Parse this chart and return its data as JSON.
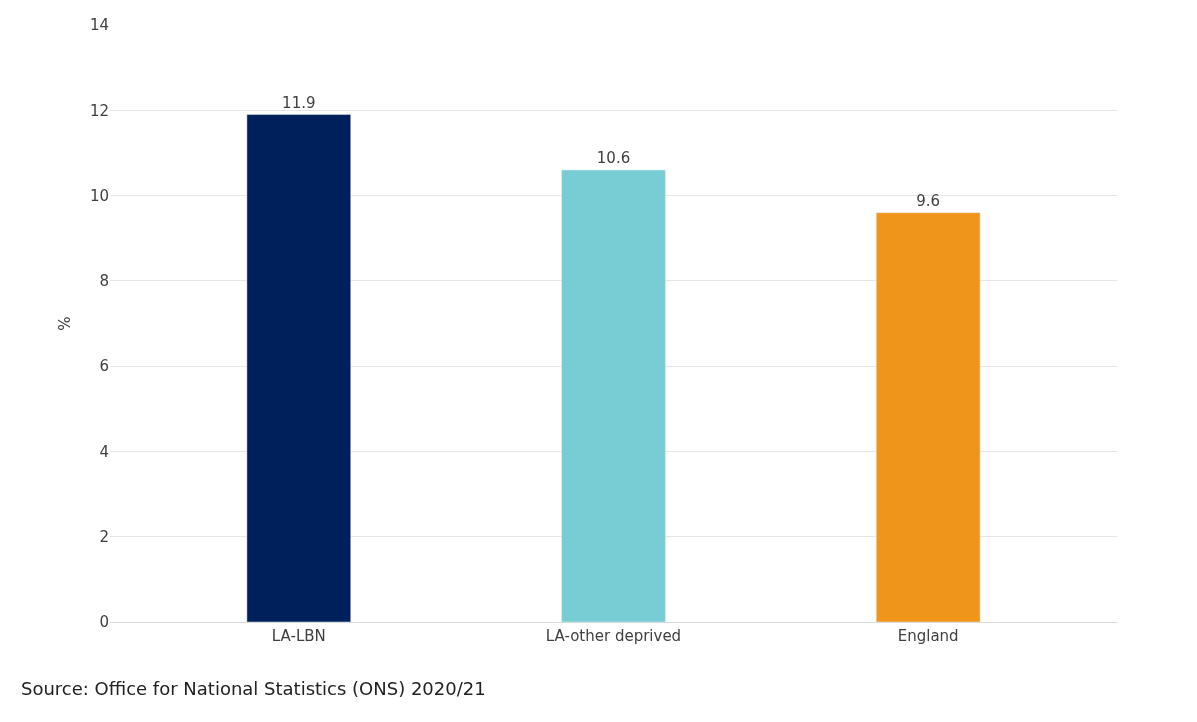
{
  "chart_data": {
    "type": "bar",
    "ylabel": "%",
    "categories": [
      "LA-LBN",
      "LA-other deprived",
      "England"
    ],
    "values": [
      11.9,
      10.6,
      9.6
    ],
    "colors": [
      "#00205b",
      "#78cdd5",
      "#ee951a"
    ],
    "ylim": [
      0,
      14
    ],
    "yticks": [
      0,
      2,
      4,
      6,
      8,
      10,
      12,
      14
    ],
    "grid": "y",
    "data_labels": true,
    "annotations": [
      "Source: Office for National Statistics (ONS) 2020/21"
    ]
  }
}
